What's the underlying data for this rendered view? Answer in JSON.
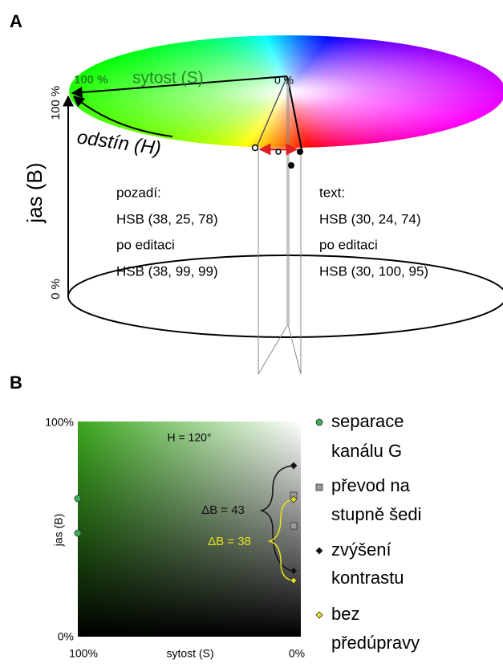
{
  "panel_a": {
    "label": "A",
    "saturation_start": "100 %",
    "saturation_title": "sytost (S)",
    "saturation_end": "0 %",
    "brightness_top": "100 %",
    "brightness_title": "jas (B)",
    "brightness_bottom": "0 %",
    "hue_title": "odstín (H)",
    "background": [
      "pozadí:",
      "HSB (38, 25, 78)",
      "po editaci",
      "HSB (38, 99, 99)"
    ],
    "text": [
      "text:",
      "HSB (30, 24, 74)",
      "po editaci",
      "HSB (30, 100, 95)"
    ]
  },
  "panel_b": {
    "label": "B",
    "y_top": "100%",
    "y_bottom": "0%",
    "y_title": "jas (B)",
    "x_left": "100%",
    "x_title": "sytost (S)",
    "x_right": "0%",
    "hue_note": "H = 120°",
    "delta_gray": "ΔB = 43",
    "delta_yellow": "ΔB = 38",
    "legend": [
      [
        "separace",
        "kanálu G"
      ],
      [
        "převod na",
        "stupně šedi"
      ],
      [
        "zvýšení",
        "kontrastu"
      ],
      [
        "bez",
        "předúpravy"
      ]
    ]
  }
}
